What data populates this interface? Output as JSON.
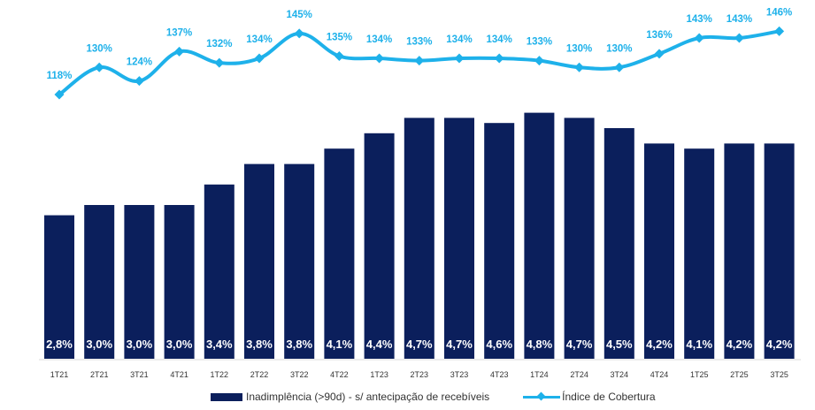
{
  "chart_data": {
    "type": "bar+line",
    "title": "",
    "categories": [
      "1T21",
      "2T21",
      "3T21",
      "4T21",
      "1T22",
      "2T22",
      "3T22",
      "4T22",
      "1T23",
      "2T23",
      "3T23",
      "4T23",
      "1T24",
      "2T24",
      "3T24",
      "4T24",
      "1T25",
      "2T25",
      "3T25"
    ],
    "series": [
      {
        "name": "Inadimplência (>90d) - s/ antecipação de recebíveis",
        "type": "bar",
        "color": "#0B1F5C",
        "values": [
          2.8,
          3.0,
          3.0,
          3.0,
          3.4,
          3.8,
          3.8,
          4.1,
          4.4,
          4.7,
          4.7,
          4.6,
          4.8,
          4.7,
          4.5,
          4.2,
          4.1,
          4.2,
          4.2
        ],
        "labels": [
          "2,8%",
          "3,0%",
          "3,0%",
          "3,0%",
          "3,4%",
          "3,8%",
          "3,8%",
          "4,1%",
          "4,4%",
          "4,7%",
          "4,7%",
          "4,6%",
          "4,8%",
          "4,7%",
          "4,5%",
          "4,2%",
          "4,1%",
          "4,2%",
          "4,2%"
        ]
      },
      {
        "name": "Índice de Cobertura",
        "type": "line",
        "color": "#1EB1EA",
        "marker": "diamond",
        "smooth": true,
        "values": [
          118,
          130,
          124,
          137,
          132,
          134,
          145,
          135,
          134,
          133,
          134,
          134,
          133,
          130,
          130,
          136,
          143,
          143,
          146
        ],
        "labels": [
          "118%",
          "130%",
          "124%",
          "137%",
          "132%",
          "134%",
          "145%",
          "135%",
          "134%",
          "133%",
          "134%",
          "134%",
          "133%",
          "130%",
          "130%",
          "136%",
          "143%",
          "143%",
          "146%"
        ]
      }
    ],
    "xlabel": "",
    "ylabel": "",
    "bar_ylim": [
      0,
      7
    ],
    "line_ylim": [
      76,
      160
    ],
    "grid": false,
    "legend": "bottom-center",
    "axis_color": "#D9D9D9"
  },
  "legend": {
    "bar_label": "Inadimplência (>90d) - s/ antecipação de recebíveis",
    "line_label": "Índice de Cobertura"
  }
}
